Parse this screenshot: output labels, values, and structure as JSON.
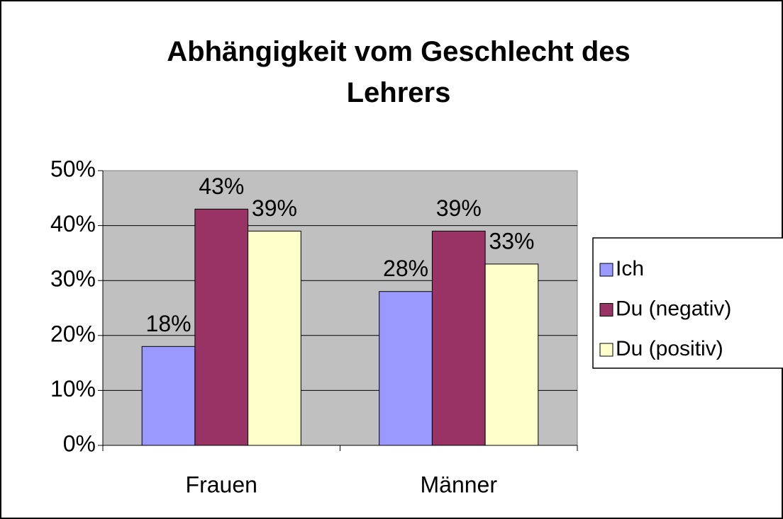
{
  "chart_data": {
    "type": "bar",
    "title": "Abhängigkeit vom Geschlecht des Lehrers",
    "categories": [
      "Frauen",
      "Männer"
    ],
    "series": [
      {
        "name": "Ich",
        "color": "#9999ff",
        "values": [
          18,
          28
        ],
        "value_labels": [
          "18%",
          "28%"
        ]
      },
      {
        "name": "Du (negativ)",
        "color": "#993366",
        "values": [
          43,
          39
        ],
        "value_labels": [
          "43%",
          "39%"
        ]
      },
      {
        "name": "Du (positiv)",
        "color": "#ffffcc",
        "values": [
          39,
          33
        ],
        "value_labels": [
          "39%",
          "33%"
        ]
      }
    ],
    "ylim": [
      0,
      50
    ],
    "yticks": [
      {
        "value": 0,
        "label": "0%"
      },
      {
        "value": 10,
        "label": "10%"
      },
      {
        "value": 20,
        "label": "20%"
      },
      {
        "value": 30,
        "label": "30%"
      },
      {
        "value": 40,
        "label": "40%"
      },
      {
        "value": 50,
        "label": "50%"
      }
    ],
    "grid": true,
    "legend": "right"
  }
}
